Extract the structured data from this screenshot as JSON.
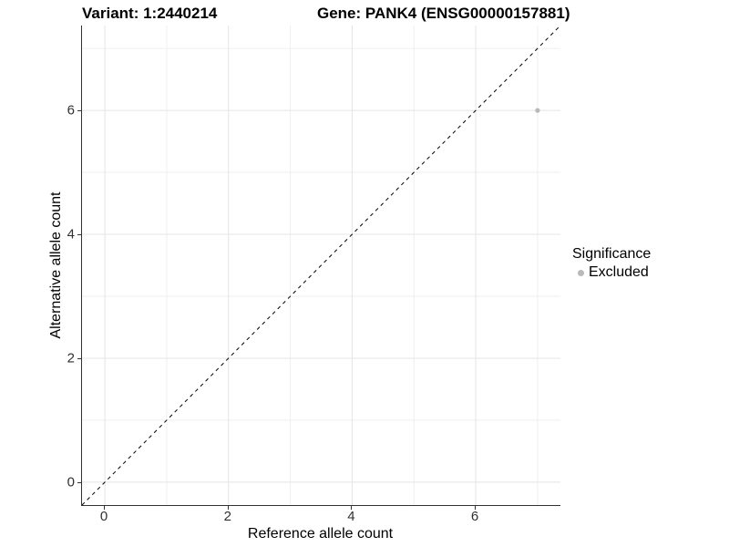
{
  "titles": {
    "variant": "Variant: 1:2440214",
    "gene": "Gene: PANK4 (ENSG00000157881)"
  },
  "chart_data": {
    "type": "scatter",
    "title": "Variant: 1:2440214  |  Gene: PANK4 (ENSG00000157881)",
    "xlabel": "Reference allele count",
    "ylabel": "Alternative allele count",
    "xlim": [
      -0.37,
      7.37
    ],
    "ylim": [
      -0.37,
      7.37
    ],
    "x_ticks": [
      0,
      2,
      4,
      6
    ],
    "y_ticks": [
      0,
      2,
      4,
      6
    ],
    "x_minor_ticks": [
      1,
      3,
      5,
      7
    ],
    "y_minor_ticks": [
      1,
      3,
      5,
      7
    ],
    "grid": "on",
    "aspect": "equal",
    "series": [
      {
        "name": "Excluded",
        "points": [
          {
            "x": 7,
            "y": 6
          }
        ],
        "color": "#b9b9b9"
      }
    ],
    "reference_line": {
      "description": "identity line y = x",
      "from": {
        "x": -0.37,
        "y": -0.37
      },
      "to": {
        "x": 7.37,
        "y": 7.37
      },
      "style": "dashed",
      "color": "#000000"
    },
    "legend": {
      "title": "Significance",
      "position": "right",
      "items": [
        {
          "label": "Excluded",
          "color": "#b9b9b9"
        }
      ]
    }
  },
  "colors": {
    "background": "#ffffff",
    "axis_line": "#333333",
    "tick_label": "#303030",
    "grid_major": "#e4e4e4",
    "grid_minor": "#efefef",
    "point": "#b9b9b9",
    "dashed_line": "#000000"
  }
}
